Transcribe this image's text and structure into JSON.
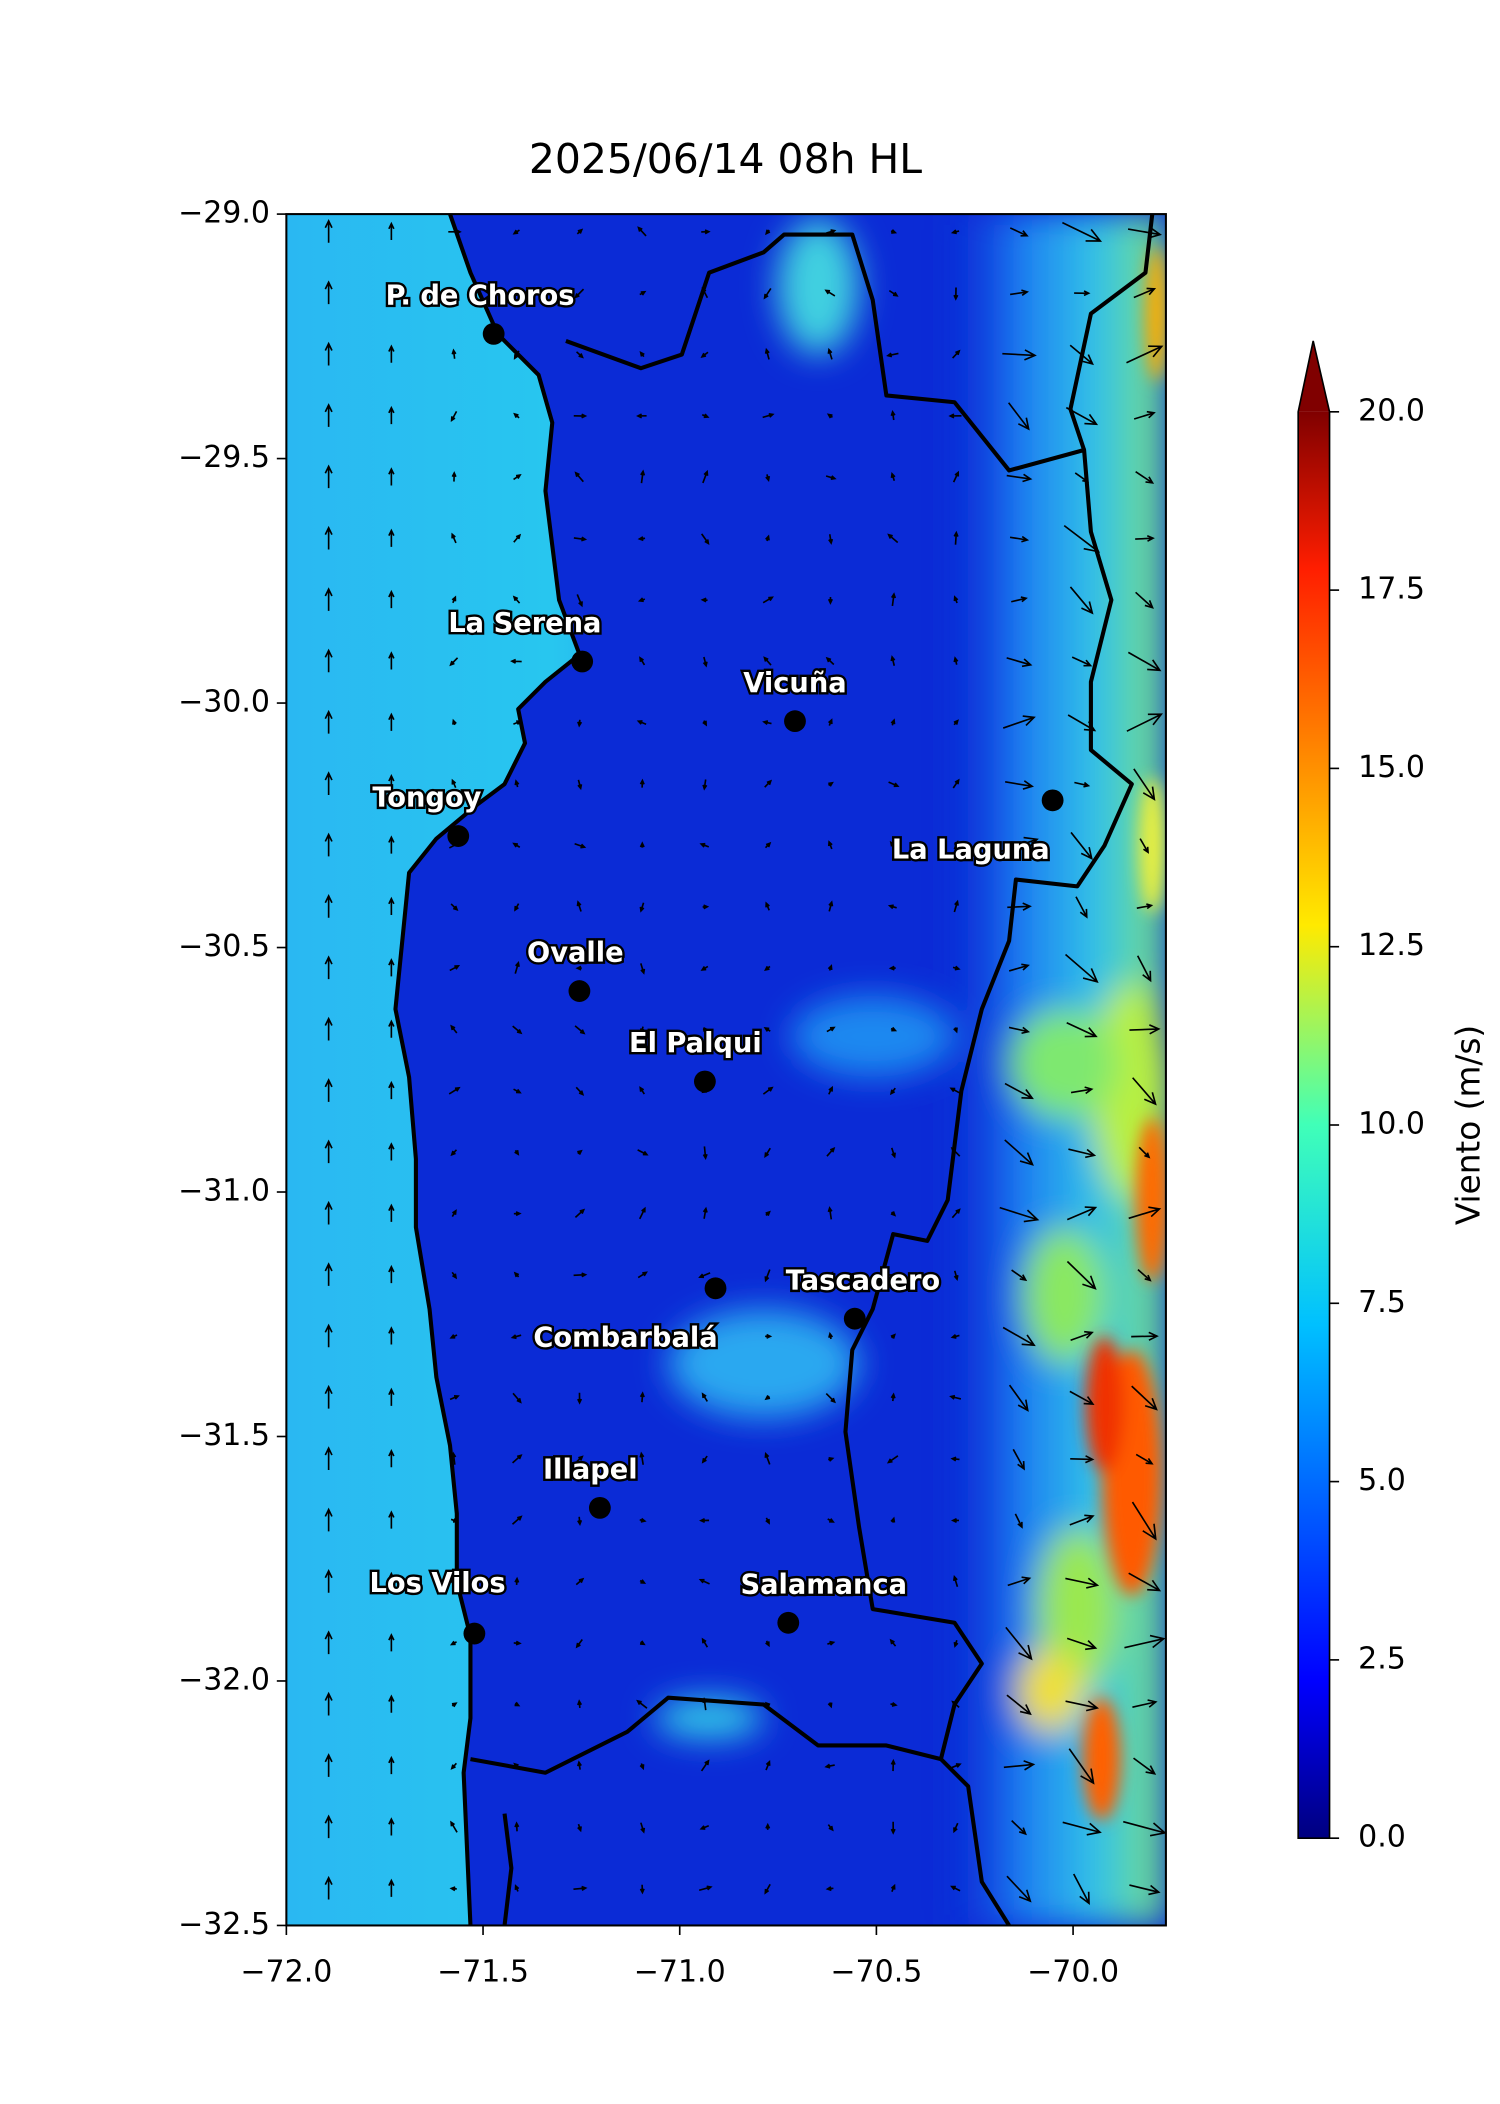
{
  "chart_data": {
    "type": "map",
    "title": "2025/06/14 08h HL",
    "xlim": [
      -72.0,
      -69.764
    ],
    "ylim": [
      -32.5,
      -29.0
    ],
    "xticks": [
      {
        "value": -72.0,
        "label": "−72.0"
      },
      {
        "value": -71.5,
        "label": "−71.5"
      },
      {
        "value": -71.0,
        "label": "−71.0"
      },
      {
        "value": -70.5,
        "label": "−70.5"
      },
      {
        "value": -70.0,
        "label": "−70.0"
      }
    ],
    "yticks": [
      {
        "value": -29.0,
        "label": "−29.0"
      },
      {
        "value": -29.5,
        "label": "−29.5"
      },
      {
        "value": -30.0,
        "label": "−30.0"
      },
      {
        "value": -30.5,
        "label": "−30.5"
      },
      {
        "value": -31.0,
        "label": "−31.0"
      },
      {
        "value": -31.5,
        "label": "−31.5"
      },
      {
        "value": -32.0,
        "label": "−32.0"
      },
      {
        "value": -32.5,
        "label": "−32.5"
      }
    ],
    "cities": [
      {
        "name": "P. de Choros",
        "lon": -71.473,
        "lat": -29.245
      },
      {
        "name": "La Serena",
        "lon": -71.248,
        "lat": -29.915
      },
      {
        "name": "Vicuña",
        "lon": -70.707,
        "lat": -30.037
      },
      {
        "name": "Tongoy",
        "lon": -71.563,
        "lat": -30.272
      },
      {
        "name": "La Laguna",
        "lon": -70.052,
        "lat": -30.199
      },
      {
        "name": "Ovalle",
        "lon": -71.255,
        "lat": -30.589
      },
      {
        "name": "El Palqui",
        "lon": -70.936,
        "lat": -30.774
      },
      {
        "name": "Combarbalá",
        "lon": -70.909,
        "lat": -31.197
      },
      {
        "name": "Tascadero",
        "lon": -70.555,
        "lat": -31.259
      },
      {
        "name": "Illapel",
        "lon": -71.203,
        "lat": -31.646
      },
      {
        "name": "Los Vilos",
        "lon": -71.522,
        "lat": -31.903
      },
      {
        "name": "Salamanca",
        "lon": -70.724,
        "lat": -31.881
      }
    ],
    "colorbar": {
      "label": "Viento (m/s)",
      "lim": [
        0.0,
        20.0
      ],
      "ticks": [
        {
          "value": 0.0,
          "label": "0.0"
        },
        2.5,
        {
          "value": 5.0,
          "label": "5.0"
        },
        7.5,
        {
          "value": 10.0,
          "label": "10.0"
        },
        12.5,
        {
          "value": 15.0,
          "label": "15.0"
        },
        17.5,
        {
          "value": 20.0,
          "label": "20.0"
        }
      ]
    }
  }
}
